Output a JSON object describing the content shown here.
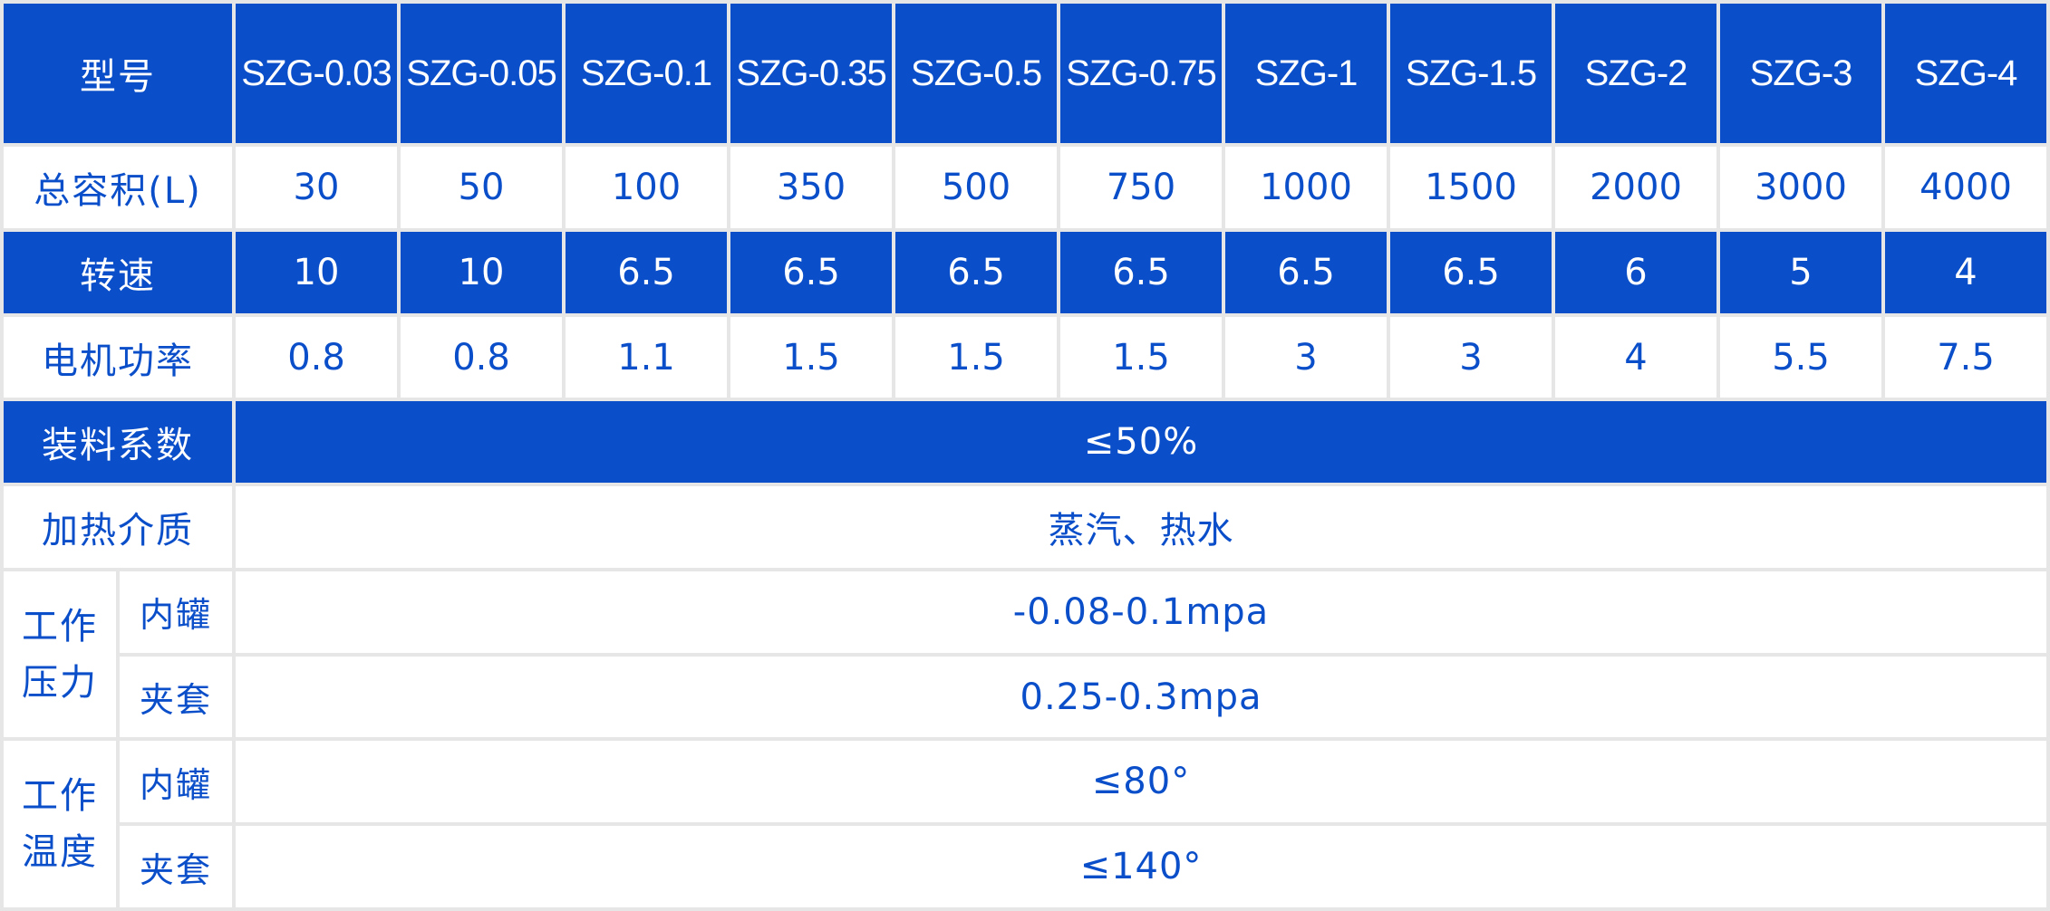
{
  "header": {
    "label": "型号",
    "models": [
      "SZG-0.03",
      "SZG-0.05",
      "SZG-0.1",
      "SZG-0.35",
      "SZG-0.5",
      "SZG-0.75",
      "SZG-1",
      "SZG-1.5",
      "SZG-2",
      "SZG-3",
      "SZG-4"
    ]
  },
  "rows": {
    "volume": {
      "label": "总容积(L)",
      "values": [
        "30",
        "50",
        "100",
        "350",
        "500",
        "750",
        "1000",
        "1500",
        "2000",
        "3000",
        "4000"
      ]
    },
    "speed": {
      "label": "转速",
      "values": [
        "10",
        "10",
        "6.5",
        "6.5",
        "6.5",
        "6.5",
        "6.5",
        "6.5",
        "6",
        "5",
        "4"
      ]
    },
    "power": {
      "label": "电机功率",
      "values": [
        "0.8",
        "0.8",
        "1.1",
        "1.5",
        "1.5",
        "1.5",
        "3",
        "3",
        "4",
        "5.5",
        "7.5"
      ]
    },
    "loading": {
      "label": "装料系数",
      "value": "≤50%"
    },
    "heating": {
      "label": "加热介质",
      "value": "蒸汽、热水"
    }
  },
  "pressure": {
    "label_line1": "工作",
    "label_line2": "压力",
    "inner_label": "内罐",
    "inner_value": "-0.08-0.1mpa",
    "jacket_label": "夹套",
    "jacket_value": "0.25-0.3mpa"
  },
  "temperature": {
    "label_line1": "工作",
    "label_line2": "温度",
    "inner_label": "内罐",
    "inner_value": "≤80°",
    "jacket_label": "夹套",
    "jacket_value": "≤140°"
  },
  "colors": {
    "header_blue": "#0a4ec9",
    "text_blue": "#0a4ec9",
    "grid_gray": "#e6e6e6"
  }
}
